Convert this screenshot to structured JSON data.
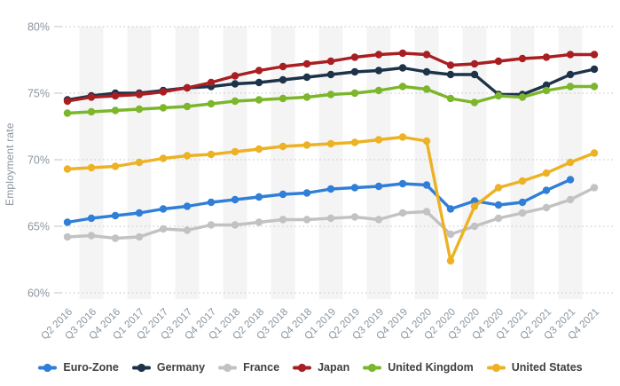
{
  "page": {
    "background": "#ffffff"
  },
  "styles": {
    "band_color": "#f4f4f4",
    "grid_color": "#c9ced4",
    "tick_label_color": "#8a95a1",
    "legend_text_color": "#404040"
  },
  "chart_data": {
    "type": "line",
    "title": "",
    "xlabel": "",
    "ylabel": "Employment rate",
    "ylim": [
      60,
      80
    ],
    "y_tick_interval": 5,
    "y_ticks": [
      "60%",
      "65%",
      "70%",
      "75%",
      "80%"
    ],
    "grid": "horizontal dotted gridlines, alternating vertical light-gray bands per quarter",
    "legend_position": "bottom",
    "marker": "circle",
    "categories": [
      "Q2 2016",
      "Q3 2016",
      "Q4 2016",
      "Q1 2017",
      "Q2 2017",
      "Q3 2017",
      "Q4 2017",
      "Q1 2018",
      "Q2 2018",
      "Q3 2018",
      "Q4 2018",
      "Q1 2019",
      "Q2 2019",
      "Q3 2019",
      "Q4 2019",
      "Q1 2020",
      "Q2 2020",
      "Q3 2020",
      "Q4 2020",
      "Q1 2021",
      "Q2 2021",
      "Q3 2021",
      "Q4 2021"
    ],
    "series": [
      {
        "name": "Euro-Zone",
        "color": "#2f7ed8",
        "values": [
          65.3,
          65.6,
          65.8,
          66.0,
          66.3,
          66.5,
          66.8,
          67.0,
          67.2,
          67.4,
          67.5,
          67.8,
          67.9,
          68.0,
          68.2,
          68.1,
          66.3,
          66.9,
          66.6,
          66.8,
          67.7,
          68.5,
          null
        ]
      },
      {
        "name": "Germany",
        "color": "#1d3349",
        "values": [
          74.5,
          74.8,
          75.0,
          75.0,
          75.2,
          75.4,
          75.5,
          75.7,
          75.8,
          76.0,
          76.2,
          76.4,
          76.6,
          76.7,
          76.9,
          76.6,
          76.4,
          76.4,
          74.9,
          74.9,
          75.6,
          76.4,
          76.8
        ]
      },
      {
        "name": "France",
        "color": "#c2c2c2",
        "values": [
          64.2,
          64.3,
          64.1,
          64.2,
          64.8,
          64.7,
          65.1,
          65.1,
          65.3,
          65.5,
          65.5,
          65.6,
          65.7,
          65.5,
          66.0,
          66.1,
          64.4,
          65.0,
          65.6,
          66.0,
          66.4,
          67.0,
          67.9
        ]
      },
      {
        "name": "Japan",
        "color": "#a91e22",
        "values": [
          74.4,
          74.7,
          74.8,
          74.9,
          75.1,
          75.4,
          75.8,
          76.3,
          76.7,
          77.0,
          77.2,
          77.4,
          77.7,
          77.9,
          78.0,
          77.9,
          77.1,
          77.2,
          77.4,
          77.6,
          77.7,
          77.9,
          77.9
        ]
      },
      {
        "name": "United Kingdom",
        "color": "#7cb62b",
        "values": [
          73.5,
          73.6,
          73.7,
          73.8,
          73.9,
          74.0,
          74.2,
          74.4,
          74.5,
          74.6,
          74.7,
          74.9,
          75.0,
          75.2,
          75.5,
          75.3,
          74.6,
          74.3,
          74.8,
          74.7,
          75.2,
          75.5,
          75.5
        ]
      },
      {
        "name": "United States",
        "color": "#edb224",
        "values": [
          69.3,
          69.4,
          69.5,
          69.8,
          70.1,
          70.3,
          70.4,
          70.6,
          70.8,
          71.0,
          71.1,
          71.2,
          71.3,
          71.5,
          71.7,
          71.4,
          62.4,
          66.5,
          67.9,
          68.4,
          69.0,
          69.8,
          70.5
        ]
      }
    ]
  }
}
